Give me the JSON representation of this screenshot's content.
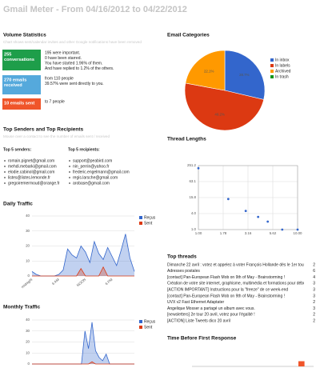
{
  "header": {
    "title": "Gmail Meter - From 04/16/2012 to 04/22/2012"
  },
  "volume": {
    "title": "Volume Statistics",
    "note": "Chart shows sent/calendar invites and other Google notifications have been removed",
    "boxes": [
      {
        "color": "#1e9e4a",
        "label": [
          "255",
          "conversations"
        ],
        "lines": [
          "195 were important.",
          "0 have been starred.",
          "You have started 1.96% of them.",
          "And have replied to 1.2% of the others."
        ]
      },
      {
        "color": "#55a9dc",
        "label": [
          "270 emails",
          "received"
        ],
        "lines": [
          "from 110 people",
          "39.57% were sent directly to you."
        ]
      },
      {
        "color": "#f0552a",
        "label": [
          "10 emails sent"
        ],
        "lines": [
          "to 7 people"
        ]
      }
    ]
  },
  "contacts": {
    "title": "Top Senders and Top Recipients",
    "note": "Mouse over a contact to see the number of emails sent / received",
    "senders_title": "Top 5 senders:",
    "senders": [
      "romain.pignet@gmail.com",
      "mehdi.mebarki@gmail.com",
      "elodie.cabinol@gmail.com",
      "listes@listes.lemonde.fr",
      "gregoiremermoud@orange.fr"
    ],
    "recipients_title": "Top 5 recipients:",
    "recipients": [
      "support@peabird.com",
      "nin_perrin@yahoo.fr",
      "frederic.engelmann@gmail.com",
      "regis.larsche@gmail.com",
      "arobase@gmail.com"
    ]
  },
  "threads": {
    "title": "Top threads",
    "rows": [
      {
        "subject": "Dimanche 22 avril : votez et appelez à voter François Hollande dès le 1er tour",
        "count": 2
      },
      {
        "subject": "Adresses postales",
        "count": 6
      },
      {
        "subject": "[contact] Pan-European Flash Mob on 9th of May - Brainstorming !",
        "count": 4
      },
      {
        "subject": "Création de votre site internet, graphisme, multimédia et formations pour débutants",
        "count": 3
      },
      {
        "subject": "[ACTION IMPORTANT] Instructions pour la \"freeze\" de ce week-end",
        "count": 3
      },
      {
        "subject": "[contact] Pan-European Flash Mob on 9th of May - Brainstorming !",
        "count": 3
      },
      {
        "subject": "UVX v2 Fast Ethernet Adaptater",
        "count": 2
      },
      {
        "subject": "Angelique Mosser a partagé un album avec vous.",
        "count": 3
      },
      {
        "subject": "[newsletters] 2e tour 20 avril, votez pour l'égalité !",
        "count": 2
      },
      {
        "subject": "[ACTION] Liste Tweets dico 20 avril",
        "count": 2
      }
    ]
  },
  "chart_data": [
    {
      "type": "area",
      "title": "Daily Traffic",
      "categories": [
        "midnight",
        null,
        null,
        null,
        null,
        null,
        "6 AM",
        null,
        null,
        null,
        null,
        null,
        "NOON",
        null,
        null,
        null,
        null,
        null,
        "6 PM",
        null,
        null,
        null,
        null,
        null
      ],
      "series": [
        {
          "name": "Reçus",
          "color": "#3366cc",
          "values": [
            3,
            1,
            0,
            0,
            0,
            0,
            1,
            4,
            18,
            14,
            12,
            20,
            16,
            9,
            23,
            15,
            11,
            19,
            13,
            7,
            17,
            28,
            12,
            3
          ]
        },
        {
          "name": "Sent",
          "color": "#dc3912",
          "values": [
            0,
            0,
            0,
            0,
            0,
            0,
            0,
            0,
            0,
            0,
            0,
            5,
            0,
            0,
            0,
            0,
            6,
            0,
            0,
            0,
            0,
            0,
            0,
            0
          ]
        }
      ],
      "ylim": [
        0,
        40
      ],
      "yticks": [
        0,
        10,
        20,
        30,
        40
      ],
      "grid": true
    },
    {
      "type": "area",
      "title": "Monthly Traffic",
      "categories": [
        null,
        null,
        null,
        null,
        null,
        null,
        null,
        null,
        null,
        null,
        null,
        null,
        null,
        null,
        null,
        null,
        null,
        null,
        null,
        null,
        null,
        null,
        null,
        null,
        null,
        null,
        null,
        null,
        null,
        null
      ],
      "series": [
        {
          "name": "Reçus",
          "color": "#3366cc",
          "values": [
            0,
            0,
            0,
            0,
            0,
            0,
            0,
            0,
            0,
            0,
            0,
            0,
            0,
            0,
            0,
            30,
            14,
            38,
            12,
            6,
            3,
            9,
            0,
            0,
            0,
            0,
            0,
            0,
            0,
            0
          ]
        },
        {
          "name": "Sent",
          "color": "#dc3912",
          "values": [
            0,
            0,
            0,
            0,
            0,
            0,
            0,
            0,
            0,
            0,
            0,
            0,
            0,
            0,
            0,
            0,
            0,
            2,
            0,
            0,
            0,
            0,
            0,
            0,
            0,
            0,
            0,
            0,
            0,
            0
          ]
        }
      ],
      "ylim": [
        0,
        40
      ],
      "yticks": [
        0,
        10,
        20,
        30,
        40
      ],
      "grid": true
    },
    {
      "type": "pie",
      "title": "Email Categories",
      "categories": [
        "In inbox",
        "In labels",
        "Archived",
        "In trash"
      ],
      "values": [
        28.7,
        49.2,
        22.1,
        0
      ],
      "value_labels": [
        "28.7%",
        "49.2%",
        "22.1%",
        null
      ],
      "colors": [
        "#3366cc",
        "#dc3912",
        "#ff9900",
        "#109618"
      ]
    },
    {
      "type": "scatter",
      "title": "Thread Lengths",
      "x": [
        1,
        2,
        3,
        4,
        5,
        7,
        10
      ],
      "y": [
        200,
        14,
        5,
        3,
        2,
        1,
        1
      ],
      "color": "#3366cc",
      "xscale": "log",
      "yscale": "log",
      "xlim": [
        1,
        10
      ],
      "ylim": [
        1,
        251.2
      ],
      "xticks": [
        {
          "value": 1,
          "label": "1.00"
        },
        {
          "value": 1.778,
          "label": "1.78"
        },
        {
          "value": 3.162,
          "label": "3.16"
        },
        {
          "value": 5.623,
          "label": "5.62"
        },
        {
          "value": 10,
          "label": "10.00"
        }
      ],
      "yticks": [
        {
          "value": 1,
          "label": "1.0"
        },
        {
          "value": 3.981,
          "label": "4.0"
        },
        {
          "value": 15.85,
          "label": "15.8"
        },
        {
          "value": 63.1,
          "label": "63.1"
        },
        {
          "value": 251.2,
          "label": "251.2"
        }
      ],
      "grid": true
    },
    {
      "type": "bar",
      "title": "Time Before First Response",
      "categories": [
        null,
        null,
        null,
        null,
        null,
        null
      ],
      "values": [
        0,
        0,
        0,
        0,
        0,
        1
      ],
      "color": "#f0552a",
      "ylim": [
        0,
        4
      ]
    }
  ]
}
